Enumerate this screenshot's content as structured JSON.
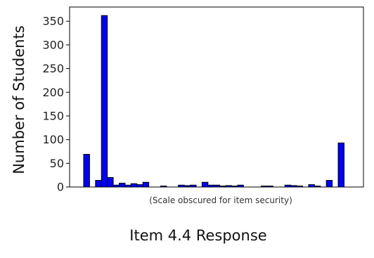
{
  "chart_data": {
    "type": "bar",
    "ylabel": "Number of Students",
    "xlabel": "Item 4.4 Response",
    "x_note": "(Scale obscured for item security)",
    "ylim": [
      0,
      380
    ],
    "y_ticks": [
      0,
      50,
      100,
      150,
      200,
      250,
      300,
      350
    ],
    "grid": false,
    "bar_color": "#0000ff",
    "bar_edge_color": "#000000",
    "values": [
      69,
      0,
      14,
      362,
      20,
      4,
      8,
      4,
      7,
      5,
      10,
      0,
      0,
      2,
      0,
      0,
      4,
      3,
      4,
      0,
      10,
      4,
      4,
      2,
      3,
      2,
      4,
      0,
      0,
      0,
      2,
      2,
      0,
      0,
      4,
      3,
      2,
      0,
      5,
      2,
      0,
      14,
      0,
      93
    ]
  }
}
